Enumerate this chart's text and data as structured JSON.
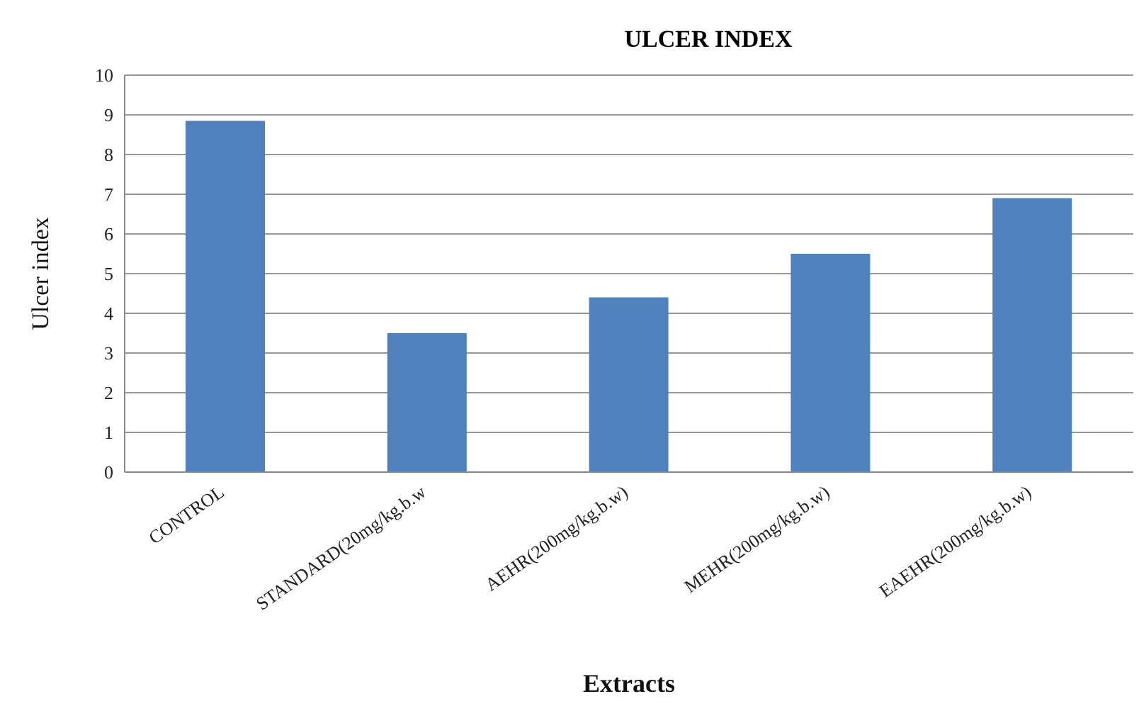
{
  "chart_data": {
    "type": "bar",
    "title": "ULCER INDEX",
    "xlabel": "Extracts",
    "ylabel": "Ulcer index",
    "categories": [
      "CONTROL",
      "STANDARD(20mg/kg.b.w",
      "AEHR(200mg/kg.b.w)",
      "MEHR(200mg/kg.b.w)",
      "EAEHR(200mg/kg.b.w)"
    ],
    "values": [
      8.85,
      3.5,
      4.4,
      5.5,
      6.9
    ],
    "color": "#4f81bd",
    "ylim": [
      0,
      10
    ],
    "yticks": [
      0,
      1,
      2,
      3,
      4,
      5,
      6,
      7,
      8,
      9,
      10
    ],
    "grid": "y",
    "legend": false
  }
}
